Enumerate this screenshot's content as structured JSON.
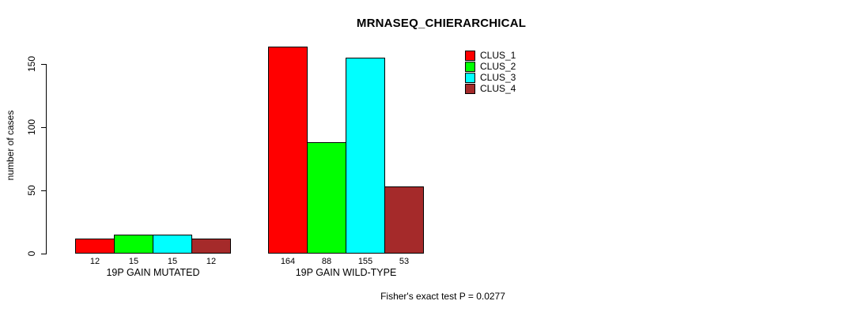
{
  "chart_data": {
    "type": "bar",
    "title": "MRNASEQ_CHIERARCHICAL",
    "ylabel": "number of cases",
    "xlabel": "",
    "yticks": [
      0,
      50,
      100,
      150
    ],
    "ylim": [
      0,
      165
    ],
    "grid": false,
    "background": "#FFFFFF",
    "categories": [
      "19P GAIN MUTATED",
      "19P GAIN WILD-TYPE"
    ],
    "series": [
      {
        "name": "CLUS_1",
        "color": "#FF0000",
        "values": [
          12,
          164
        ]
      },
      {
        "name": "CLUS_2",
        "color": "#00FF00",
        "values": [
          15,
          88
        ]
      },
      {
        "name": "CLUS_3",
        "color": "#00FFFF",
        "values": [
          15,
          155
        ]
      },
      {
        "name": "CLUS_4",
        "color": "#A52A2A",
        "values": [
          12,
          53
        ]
      }
    ],
    "value_labels": [
      [
        12,
        15,
        15,
        12
      ],
      [
        164,
        88,
        155,
        53
      ]
    ],
    "legend": {
      "position": "top-right",
      "entries": [
        "CLUS_1",
        "CLUS_2",
        "CLUS_3",
        "CLUS_4"
      ]
    },
    "footnote": "Fisher's exact test P = 0.0277"
  }
}
